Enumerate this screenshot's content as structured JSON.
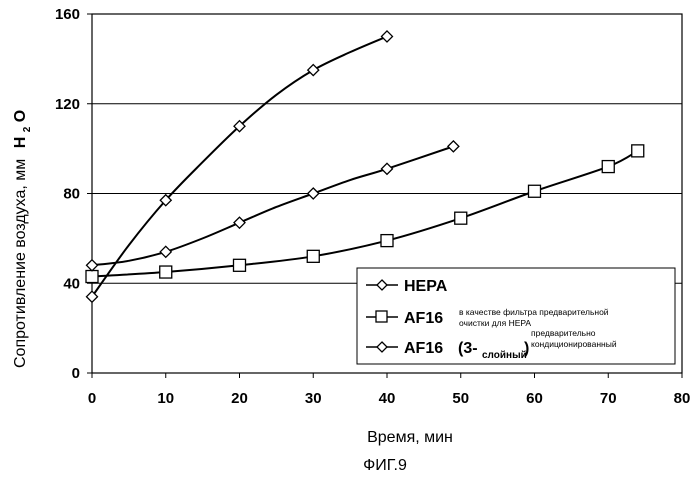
{
  "figure_caption": "ФИГ.9",
  "chart_data": {
    "type": "line",
    "xlabel": "Время, мин",
    "ylabel_main": "Сопротивление воздуха, мм",
    "ylabel_unit_h": "H",
    "ylabel_unit_sub": "2",
    "ylabel_unit_o": "O",
    "xlim": [
      0,
      80
    ],
    "ylim": [
      0,
      160
    ],
    "x_ticks": [
      0,
      10,
      20,
      30,
      40,
      50,
      60,
      70,
      80
    ],
    "y_ticks": [
      0,
      40,
      80,
      120,
      160
    ],
    "grid": "horizontal",
    "legend_position": "bottom-right",
    "series": [
      {
        "name": "HEPA",
        "marker": "diamond",
        "markers": [
          [
            0,
            34
          ],
          [
            10,
            77
          ],
          [
            20,
            110
          ],
          [
            30,
            135
          ],
          [
            40,
            150
          ]
        ],
        "curve": [
          [
            0,
            34
          ],
          [
            5,
            57
          ],
          [
            10,
            77
          ],
          [
            15,
            94
          ],
          [
            20,
            110
          ],
          [
            25,
            124
          ],
          [
            30,
            135
          ],
          [
            35,
            143
          ],
          [
            40,
            150
          ]
        ]
      },
      {
        "name": "AF16",
        "name_note_top": "в качестве фильтра предварительной",
        "name_note_bottom": "очистки для HEPA",
        "marker": "square",
        "markers": [
          [
            0,
            43
          ],
          [
            10,
            45
          ],
          [
            20,
            48
          ],
          [
            30,
            52
          ],
          [
            40,
            59
          ],
          [
            50,
            69
          ],
          [
            60,
            81
          ],
          [
            70,
            92
          ],
          [
            74,
            99
          ]
        ],
        "curve": [
          [
            0,
            43
          ],
          [
            10,
            45
          ],
          [
            20,
            48
          ],
          [
            30,
            52
          ],
          [
            40,
            59
          ],
          [
            50,
            69
          ],
          [
            60,
            81
          ],
          [
            70,
            92
          ],
          [
            74,
            99
          ]
        ]
      },
      {
        "name": "AF16",
        "name_paren": "(3-",
        "name_sub": "слойный",
        "name_paren_close": ")",
        "name_note_top": "предварительно",
        "name_note_bottom": "кондиционированный",
        "marker": "diamond",
        "markers": [
          [
            0,
            48
          ],
          [
            10,
            54
          ],
          [
            20,
            67
          ],
          [
            30,
            80
          ],
          [
            40,
            91
          ],
          [
            49,
            101
          ]
        ],
        "curve": [
          [
            0,
            48
          ],
          [
            5,
            50
          ],
          [
            10,
            54
          ],
          [
            15,
            60
          ],
          [
            20,
            67
          ],
          [
            25,
            74
          ],
          [
            30,
            80
          ],
          [
            35,
            86
          ],
          [
            40,
            91
          ],
          [
            49,
            101
          ]
        ]
      }
    ]
  }
}
